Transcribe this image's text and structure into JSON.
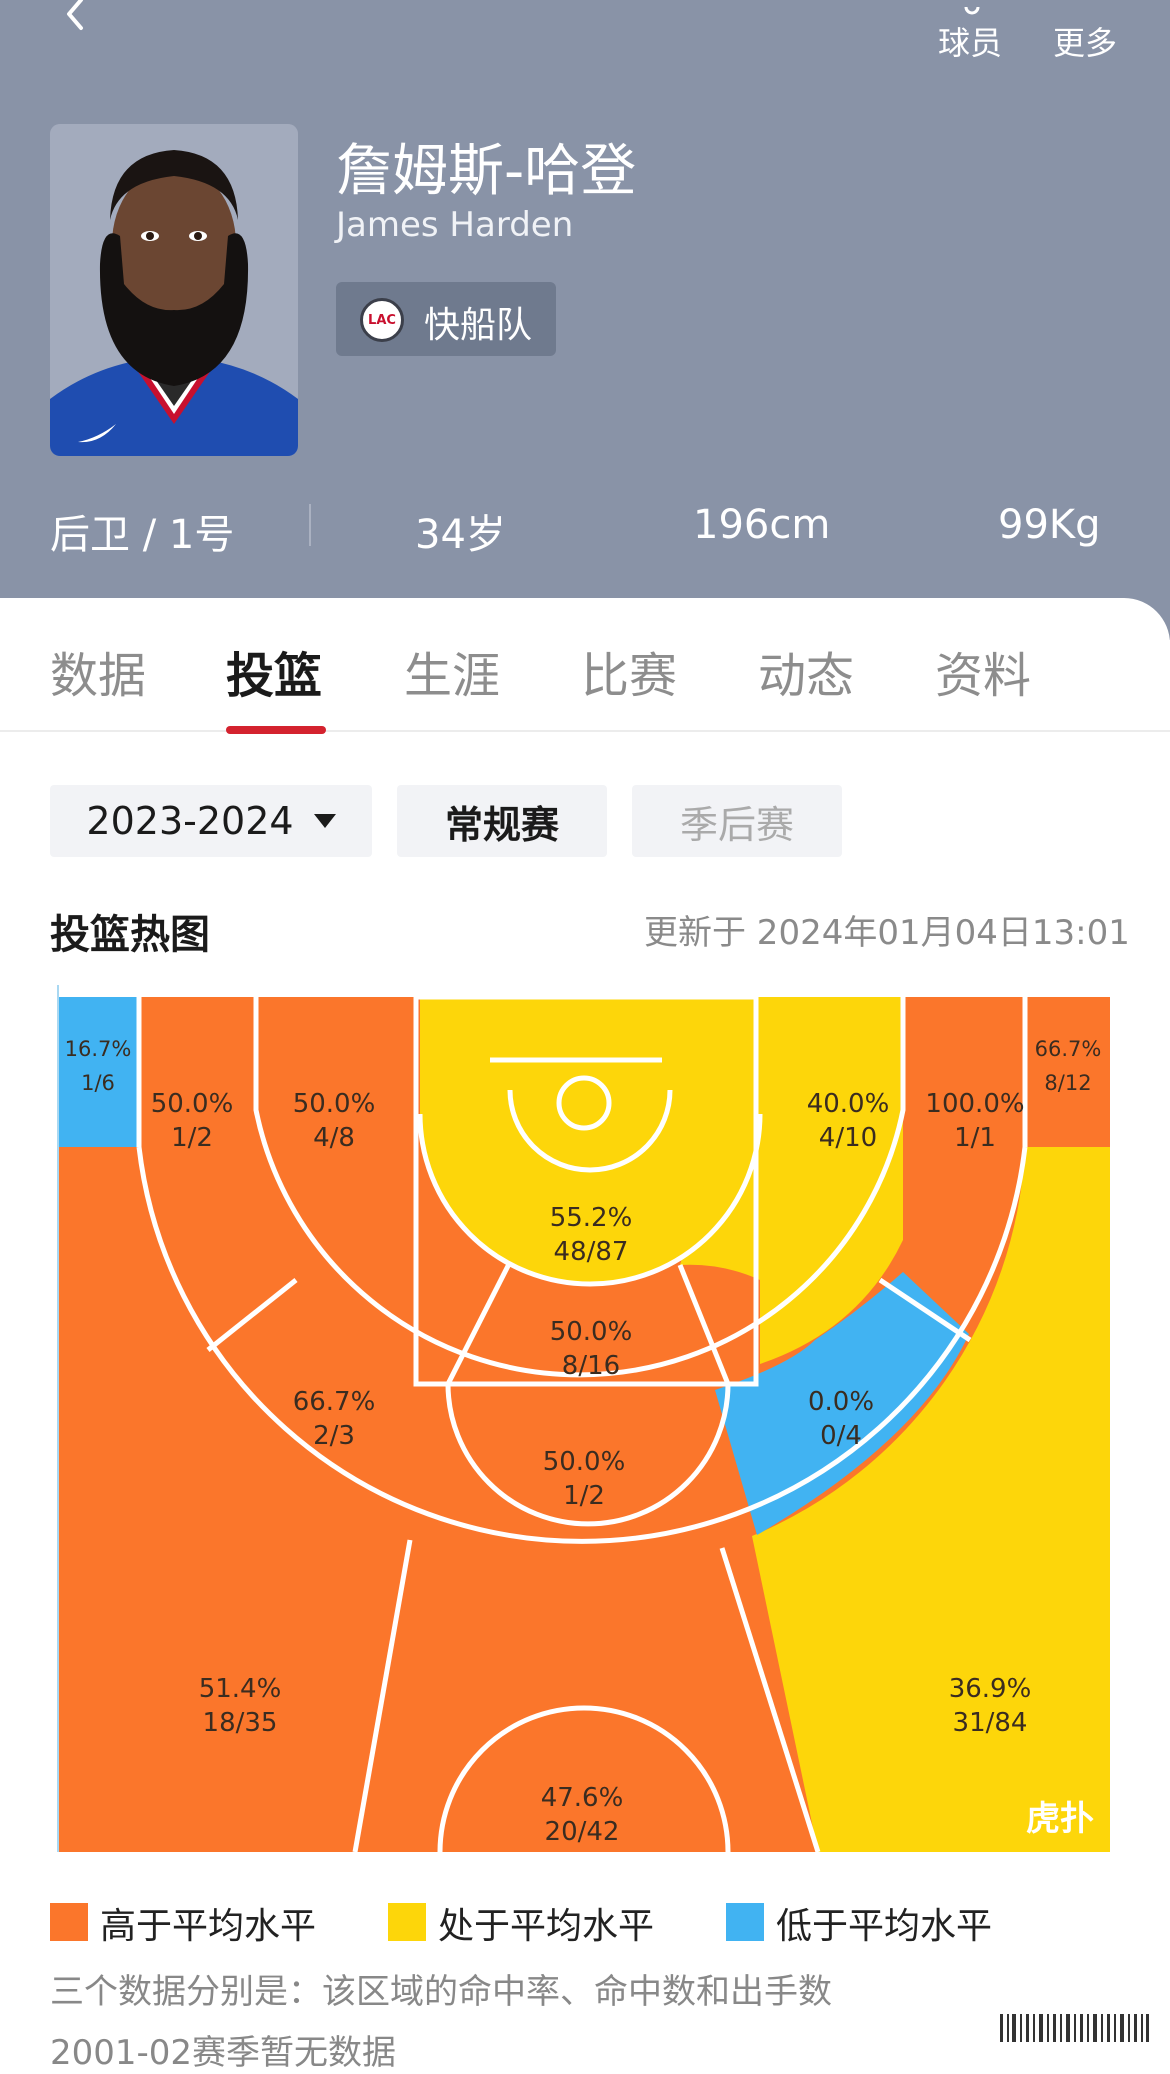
{
  "nav": {
    "players_label": "球员",
    "more_label": "更多"
  },
  "player": {
    "name_cn": "詹姆斯-哈登",
    "name_en": "James Harden",
    "team": "快船队",
    "team_logo_text": "LAC",
    "position": "后卫 / 1号",
    "age": "34岁",
    "height": "196cm",
    "weight": "99Kg"
  },
  "tabs": [
    {
      "label": "数据",
      "active": false
    },
    {
      "label": "投篮",
      "active": true
    },
    {
      "label": "生涯",
      "active": false
    },
    {
      "label": "比赛",
      "active": false
    },
    {
      "label": "动态",
      "active": false
    },
    {
      "label": "资料",
      "active": false
    }
  ],
  "filters": {
    "season": "2023-2024",
    "regular": "常规赛",
    "playoffs": "季后赛"
  },
  "heatmap": {
    "title": "投篮热图",
    "updated": "更新于 2024年01月04日13:01",
    "watermark": "虎扑",
    "colors": {
      "above": "#fb762b",
      "average": "#fdd60a",
      "below": "#41b3f2"
    },
    "zones": [
      {
        "zone": "left-corner-three",
        "pct": "16.7%",
        "made_att": "1/6",
        "level": "below"
      },
      {
        "zone": "left-baseline-long-two",
        "pct": "50.0%",
        "made_att": "1/2",
        "level": "above"
      },
      {
        "zone": "left-short-midrange",
        "pct": "50.0%",
        "made_att": "4/8",
        "level": "above"
      },
      {
        "zone": "restricted-area",
        "pct": "55.2%",
        "made_att": "48/87",
        "level": "average"
      },
      {
        "zone": "right-short-midrange",
        "pct": "40.0%",
        "made_att": "4/10",
        "level": "average"
      },
      {
        "zone": "right-baseline-long-two",
        "pct": "100.0%",
        "made_att": "1/1",
        "level": "above"
      },
      {
        "zone": "right-corner-three",
        "pct": "66.7%",
        "made_att": "8/12",
        "level": "above"
      },
      {
        "zone": "paint-non-ra",
        "pct": "50.0%",
        "made_att": "8/16",
        "level": "above"
      },
      {
        "zone": "left-wing-long-two",
        "pct": "66.7%",
        "made_att": "2/3",
        "level": "above"
      },
      {
        "zone": "right-wing-long-two",
        "pct": "0.0%",
        "made_att": "0/4",
        "level": "below"
      },
      {
        "zone": "top-key-long-two",
        "pct": "50.0%",
        "made_att": "1/2",
        "level": "above"
      },
      {
        "zone": "left-wing-three",
        "pct": "51.4%",
        "made_att": "18/35",
        "level": "above"
      },
      {
        "zone": "top-three",
        "pct": "47.6%",
        "made_att": "20/42",
        "level": "above"
      },
      {
        "zone": "right-wing-three",
        "pct": "36.9%",
        "made_att": "31/84",
        "level": "average"
      }
    ]
  },
  "legend": [
    {
      "label": "高于平均水平",
      "color": "#fb762b"
    },
    {
      "label": "处于平均水平",
      "color": "#fdd60a"
    },
    {
      "label": "低于平均水平",
      "color": "#41b3f2"
    }
  ],
  "notes": {
    "explain": "三个数据分别是：该区域的命中率、命中数和出手数",
    "no_data": "2001-02赛季暂无数据"
  }
}
